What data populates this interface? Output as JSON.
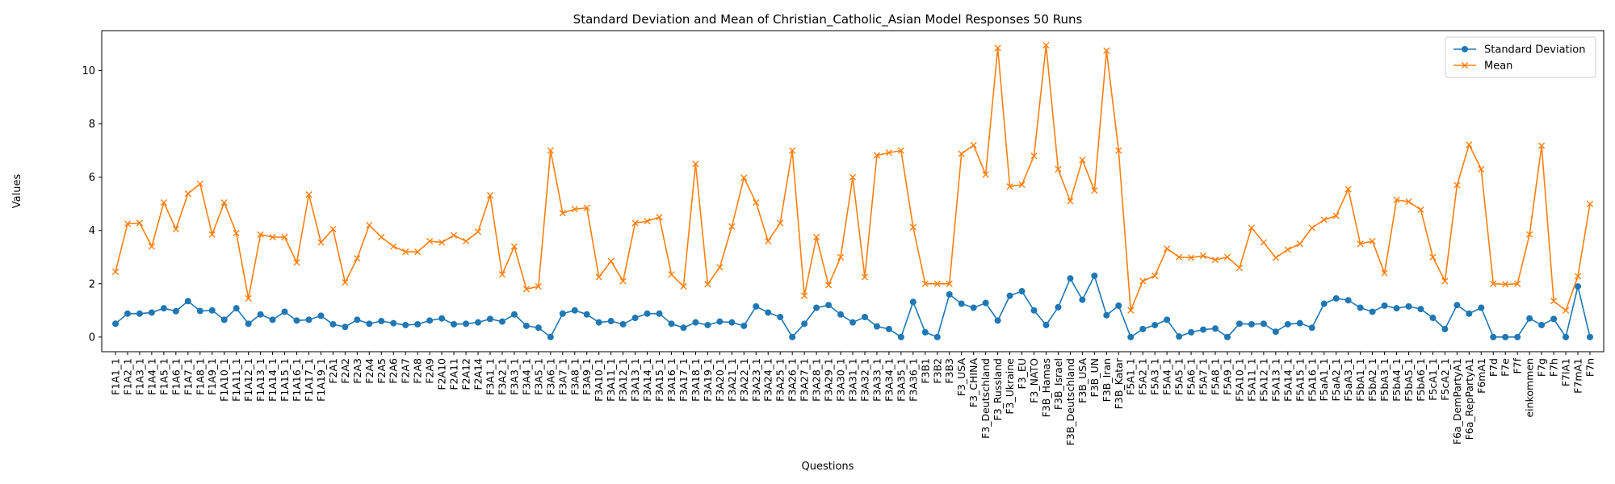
{
  "chart_data": {
    "type": "line",
    "title": "Standard Deviation and Mean of Christian_Catholic_Asian Model Responses 50 Runs",
    "xlabel": "Questions",
    "ylabel": "Values",
    "ylim": [
      -0.55,
      11.5
    ],
    "yticks": [
      0,
      2,
      4,
      6,
      8,
      10
    ],
    "grid": false,
    "legend_position": "upper-right",
    "categories": [
      "F1A1_1",
      "F1A2_1",
      "F1A3_1",
      "F1A4_1",
      "F1A5_1",
      "F1A6_1",
      "F1A7_1",
      "F1A8_1",
      "F1A9_1",
      "F1A10_1",
      "F1A11_1",
      "F1A12_1",
      "F1A13_1",
      "F1A14_1",
      "F1A15_1",
      "F1A16_1",
      "F1A17_1",
      "F1A19_1",
      "F2A1",
      "F2A2",
      "F2A3",
      "F2A4",
      "F2A5",
      "F2A6",
      "F2A7",
      "F2A8",
      "F2A9",
      "F2A10",
      "F2A11",
      "F2A12",
      "F2A14",
      "F3A1_1",
      "F3A2_1",
      "F3A3_1",
      "F3A4_1",
      "F3A5_1",
      "F3A6_1",
      "F3A7_1",
      "F3A8_1",
      "F3A9_1",
      "F3A10_1",
      "F3A11_1",
      "F3A12_1",
      "F3A13_1",
      "F3A14_1",
      "F3A15_1",
      "F3A16_1",
      "F3A17_1",
      "F3A18_1",
      "F3A19_1",
      "F3A20_1",
      "F3A21_1",
      "F3A22_1",
      "F3A23_1",
      "F3A24_1",
      "F3A25_1",
      "F3A26_1",
      "F3A27_1",
      "F3A28_1",
      "F3A29_1",
      "F3A30_1",
      "F3A31_1",
      "F3A32_1",
      "F3A33_1",
      "F3A34_1",
      "F3A35_1",
      "F3A36_1",
      "F3B1",
      "F3B2",
      "F3B3",
      "F3_USA",
      "F3_CHINA",
      "F3_Deutschland",
      "F3_Russland",
      "F3_Ukraine",
      "F3_EU",
      "F3_NATO",
      "F3B_Hamas",
      "F3B_Israel",
      "F3B_Deutschland",
      "F3B_USA",
      "F3B_UN",
      "F3B_Iran",
      "F3B_Katar",
      "F5A1_1",
      "F5A2_1",
      "F5A3_1",
      "F5A4_1",
      "F5A5_1",
      "F5A6_1",
      "F5A7_1",
      "F5A8_1",
      "F5A9_1",
      "F5A10_1",
      "F5A11_1",
      "F5A12_1",
      "F5A13_1",
      "F5A14_1",
      "F5A15_1",
      "F5A16_1",
      "F5aA1_1",
      "F5aA2_1",
      "F5aA3_1",
      "F5bA1_1",
      "F5bA2_1",
      "F5bA3_1",
      "F5bA4_1",
      "F5bA5_1",
      "F5bA6_1",
      "F5cA1_1",
      "F5cA2_1",
      "F6a_DemPartyA1",
      "F6a_RepPartyA1",
      "F6mA1",
      "F7d",
      "F7e",
      "F7f",
      "einkommen",
      "F7g",
      "F7h",
      "F7lA1",
      "F7mA1",
      "F7n"
    ],
    "series": [
      {
        "name": "Standard Deviation",
        "color": "#1f77b4",
        "marker": "circle",
        "values": [
          0.5,
          0.88,
          0.88,
          0.92,
          1.08,
          0.97,
          1.35,
          0.98,
          1.0,
          0.65,
          1.08,
          0.5,
          0.85,
          0.65,
          0.95,
          0.62,
          0.65,
          0.8,
          0.48,
          0.38,
          0.65,
          0.5,
          0.6,
          0.52,
          0.45,
          0.48,
          0.62,
          0.7,
          0.48,
          0.5,
          0.55,
          0.68,
          0.58,
          0.85,
          0.42,
          0.35,
          0.0,
          0.88,
          1.0,
          0.85,
          0.55,
          0.6,
          0.48,
          0.72,
          0.88,
          0.88,
          0.5,
          0.35,
          0.55,
          0.45,
          0.58,
          0.55,
          0.42,
          1.15,
          0.92,
          0.75,
          0.0,
          0.5,
          1.1,
          1.2,
          0.85,
          0.55,
          0.75,
          0.4,
          0.3,
          0.0,
          1.32,
          0.18,
          0.0,
          1.6,
          1.25,
          1.1,
          1.28,
          0.62,
          1.55,
          1.72,
          1.0,
          0.45,
          1.12,
          2.2,
          1.4,
          2.3,
          0.82,
          1.18,
          0.0,
          0.3,
          0.45,
          0.65,
          0.02,
          0.18,
          0.28,
          0.32,
          0.0,
          0.5,
          0.48,
          0.5,
          0.2,
          0.48,
          0.52,
          0.35,
          1.25,
          1.45,
          1.38,
          1.1,
          0.95,
          1.18,
          1.08,
          1.15,
          1.05,
          0.72,
          0.3,
          1.2,
          0.88,
          1.1,
          0.0,
          0.0,
          0.0,
          0.7,
          0.45,
          0.68,
          0.0,
          1.9,
          0.0
        ]
      },
      {
        "name": "Mean",
        "color": "#ff7f0e",
        "marker": "x",
        "values": [
          2.45,
          4.25,
          4.28,
          3.4,
          5.05,
          4.05,
          5.38,
          5.75,
          3.85,
          5.05,
          3.9,
          1.45,
          3.85,
          3.75,
          3.75,
          2.8,
          5.35,
          3.55,
          4.05,
          2.05,
          2.95,
          4.2,
          3.75,
          3.4,
          3.2,
          3.2,
          3.6,
          3.55,
          3.82,
          3.6,
          3.95,
          5.32,
          2.35,
          3.4,
          1.8,
          1.9,
          7.0,
          4.65,
          4.8,
          4.85,
          2.25,
          2.85,
          2.1,
          4.28,
          4.35,
          4.5,
          2.35,
          1.9,
          6.5,
          1.98,
          2.62,
          4.15,
          5.98,
          5.05,
          3.6,
          4.28,
          7.0,
          1.55,
          3.75,
          1.95,
          3.0,
          6.0,
          2.25,
          6.82,
          6.92,
          7.0,
          4.12,
          2.0,
          2.0,
          2.0,
          6.88,
          7.2,
          6.1,
          10.85,
          5.65,
          5.72,
          6.8,
          10.95,
          6.3,
          5.1,
          6.65,
          5.5,
          10.75,
          7.0,
          1.0,
          2.1,
          2.3,
          3.32,
          3.0,
          2.98,
          3.05,
          2.9,
          3.0,
          2.6,
          4.1,
          3.55,
          2.98,
          3.28,
          3.5,
          4.1,
          4.4,
          4.55,
          5.55,
          3.5,
          3.6,
          2.4,
          5.15,
          5.08,
          4.78,
          3.0,
          2.1,
          5.7,
          7.22,
          6.3,
          2.0,
          1.98,
          2.0,
          3.85,
          7.18,
          1.35,
          1.0,
          2.28,
          5.0
        ]
      }
    ]
  }
}
